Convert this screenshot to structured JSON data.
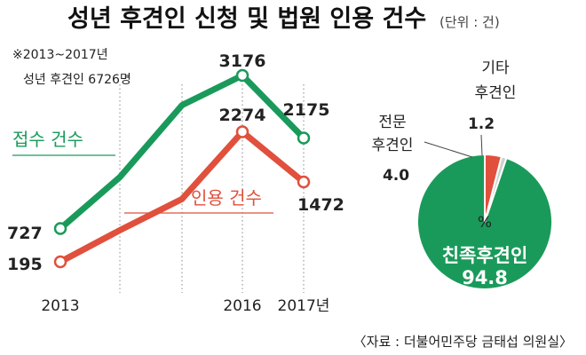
{
  "title": "성년 후견인 신청 및 법원 인용 건수",
  "unit": "(단위 : 건)",
  "note_line1": "※2013~2017년",
  "note_line2": "성년 후견인 6726명",
  "source": "〈자료 : 더불어민주당 금태섭 의원실〉",
  "colors": {
    "green": "#1a9a5a",
    "red": "#e0503c",
    "gray": "#cfcfcf"
  },
  "chart_data": [
    {
      "type": "line",
      "x_ticks": [
        "2013",
        "",
        "",
        "2016",
        "2017년"
      ],
      "series": [
        {
          "name": "접수 건수",
          "color": "#1a9a5a",
          "values": [
            727,
            1550,
            2700,
            3176,
            2175
          ],
          "labels": [
            "727",
            "",
            "",
            "3176",
            "2175"
          ]
        },
        {
          "name": "인용 건수",
          "color": "#e0503c",
          "values": [
            195,
            700,
            1200,
            2274,
            1472
          ],
          "labels": [
            "195",
            "",
            "",
            "2274",
            "1472"
          ]
        }
      ],
      "ylim": [
        0,
        3500
      ],
      "grid": "vertical dotted"
    },
    {
      "type": "pie",
      "center_label": "%",
      "slices": [
        {
          "label": "친족후견인",
          "value": 94.8,
          "value_label": "94.8",
          "color": "#1a9a5a"
        },
        {
          "label": "전문\n후견인",
          "value": 4.0,
          "value_label": "4.0",
          "color": "#e0503c"
        },
        {
          "label": "기타\n후견인",
          "value": 1.2,
          "value_label": "1.2",
          "color": "#cfcfcf"
        }
      ]
    }
  ]
}
